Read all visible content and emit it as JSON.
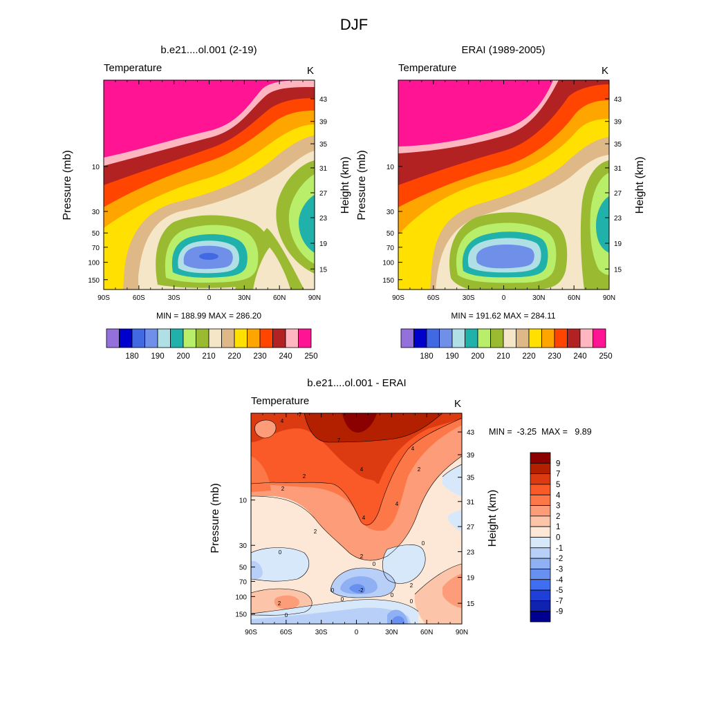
{
  "page_title": "DJF",
  "panels": {
    "model": {
      "title": "b.e21....ol.001 (2-19)",
      "field_label": "Temperature",
      "units": "K",
      "min_max": "MIN = 188.99  MAX = 286.20"
    },
    "obs": {
      "title": "ERAI (1989-2005)",
      "field_label": "Temperature",
      "units": "K",
      "min_max": "MIN = 191.62  MAX = 284.11"
    },
    "diff": {
      "title": "b.e21....ol.001 - ERAI",
      "field_label": "Temperature",
      "units": "K",
      "min_max": "MIN =  -3.25  MAX =   9.89"
    }
  },
  "axes": {
    "ylabel_left": "Pressure (mb)",
    "ylabel_right": "Height (km)"
  },
  "chart_data": [
    {
      "type": "heatmap",
      "name": "model_temperature",
      "title": "b.e21....ol.001 (2-19)",
      "xlabel": "",
      "ylabel": "Pressure (mb)",
      "ylabel_right": "Height (km)",
      "x_ticks": [
        "90S",
        "60S",
        "30S",
        "0",
        "30N",
        "60N",
        "90N"
      ],
      "y_ticks_pressure": [
        "10",
        "30",
        "50",
        "70",
        "100",
        "150"
      ],
      "y_ticks_height": [
        "43",
        "39",
        "35",
        "31",
        "27",
        "23",
        "19",
        "15"
      ],
      "min": 188.99,
      "max": 286.2
    },
    {
      "type": "heatmap",
      "name": "erai_temperature",
      "title": "ERAI (1989-2005)",
      "xlabel": "",
      "ylabel": "Pressure (mb)",
      "ylabel_right": "Height (km)",
      "x_ticks": [
        "90S",
        "60S",
        "30S",
        "0",
        "30N",
        "60N",
        "90N"
      ],
      "y_ticks_pressure": [
        "10",
        "30",
        "50",
        "70",
        "100",
        "150"
      ],
      "y_ticks_height": [
        "43",
        "39",
        "35",
        "31",
        "27",
        "23",
        "19",
        "15"
      ],
      "min": 191.62,
      "max": 284.11
    },
    {
      "type": "heatmap",
      "name": "difference",
      "title": "b.e21....ol.001 - ERAI",
      "xlabel": "",
      "ylabel": "Pressure (mb)",
      "ylabel_right": "Height (km)",
      "x_ticks": [
        "90S",
        "60S",
        "30S",
        "0",
        "30N",
        "60N",
        "90N"
      ],
      "y_ticks_pressure": [
        "10",
        "30",
        "50",
        "70",
        "100",
        "150"
      ],
      "y_ticks_height": [
        "43",
        "39",
        "35",
        "31",
        "27",
        "23",
        "19",
        "15"
      ],
      "min": -3.25,
      "max": 9.89,
      "contour_labels": [
        "4",
        "7",
        "7",
        "4",
        "4",
        "2",
        "2",
        "4",
        "4",
        "2",
        "2",
        "2",
        "0",
        "0",
        "0",
        "0",
        "0",
        "0",
        "2",
        "-2",
        "0",
        "2",
        "0"
      ]
    }
  ],
  "colorbar_temp": {
    "labels": [
      "180",
      "190",
      "200",
      "210",
      "220",
      "230",
      "240",
      "250"
    ],
    "colors": [
      "#9370db",
      "#0000cd",
      "#4169e1",
      "#6f8fe8",
      "#b0e0e6",
      "#20b2aa",
      "#b9ee6a",
      "#9aba32",
      "#f5e6c8",
      "#deb887",
      "#ffe000",
      "#ffa500",
      "#ff4500",
      "#b22222",
      "#ffb6c1",
      "#ff1493"
    ]
  },
  "colorbar_diff": {
    "labels": [
      "9",
      "7",
      "5",
      "4",
      "3",
      "2",
      "1",
      "0",
      "-1",
      "-2",
      "-3",
      "-4",
      "-5",
      "-7",
      "-9"
    ],
    "colors": [
      "#8b0000",
      "#b22000",
      "#dc3a10",
      "#fa5a28",
      "#fc7848",
      "#fc9c78",
      "#fcc4a8",
      "#fde8d8",
      "#d8e8fb",
      "#b8d0f8",
      "#90b0f4",
      "#6890f0",
      "#3f6ef0",
      "#1e40d8",
      "#0f22b0",
      "#000090"
    ]
  }
}
